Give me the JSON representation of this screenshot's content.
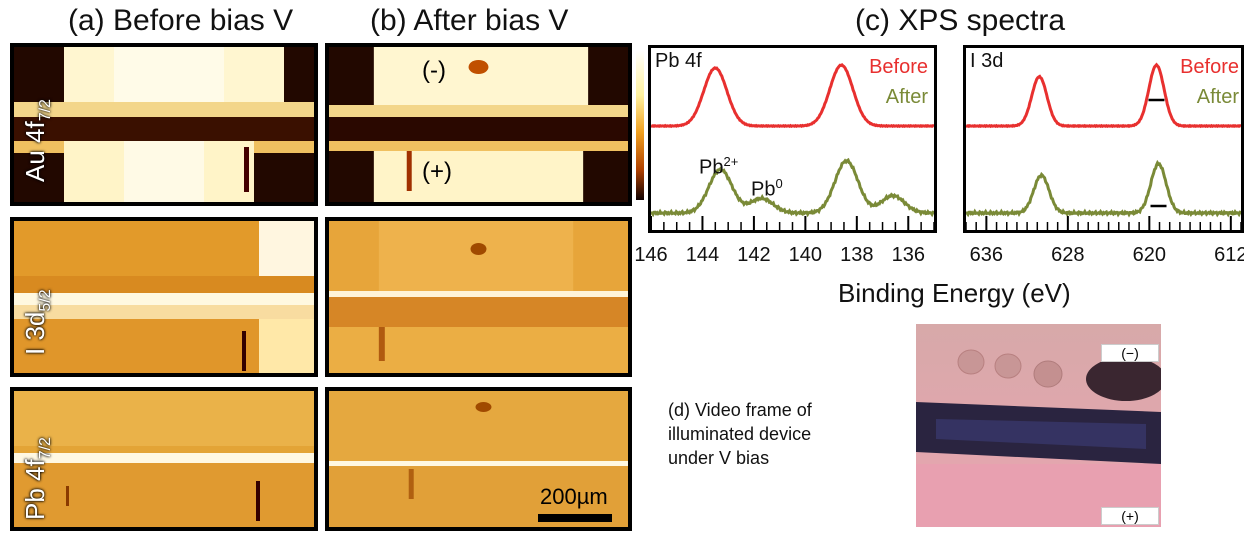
{
  "titles": {
    "a": "(a) Before bias V",
    "b": "(b) After bias V",
    "c": "(c) XPS spectra"
  },
  "row_labels": {
    "au_main": "Au 4f",
    "au_sub": "7/2",
    "i_main": "I 3d",
    "i_sub": "5/2",
    "pb_main": "Pb 4f",
    "pb_sub": "7/2"
  },
  "markers": {
    "neg": "(-)",
    "pos": "(+)"
  },
  "scale_bar": "200µm",
  "colors": {
    "before": "#e8302f",
    "after": "#7a8a37"
  },
  "chart_data": [
    {
      "type": "line",
      "panel": "Pb 4f",
      "xlabel": "Binding Energy (eV)",
      "x_reversed": true,
      "xlim": [
        146,
        135
      ],
      "ticks": [
        146,
        144,
        142,
        140,
        138,
        136
      ],
      "legend": [
        "Before",
        "After"
      ],
      "annotations": [
        {
          "text_main": "Pb",
          "text_sup": "2+",
          "x": 143.2
        },
        {
          "text_main": "Pb",
          "text_sup": "0",
          "x": 141.7
        }
      ],
      "series": [
        {
          "name": "Before",
          "peaks": [
            {
              "x": 143.5,
              "h": 1.0
            },
            {
              "x": 138.6,
              "h": 1.05
            }
          ]
        },
        {
          "name": "After",
          "peaks": [
            {
              "x": 143.3,
              "h": 0.75
            },
            {
              "x": 141.7,
              "h": 0.25
            },
            {
              "x": 138.4,
              "h": 0.9
            },
            {
              "x": 136.6,
              "h": 0.3
            }
          ]
        }
      ]
    },
    {
      "type": "line",
      "panel": "I 3d",
      "xlabel": "Binding Energy (eV)",
      "x_reversed": true,
      "xlim": [
        638,
        611
      ],
      "ticks": [
        636,
        628,
        620,
        612
      ],
      "legend": [
        "Before",
        "After"
      ],
      "series": [
        {
          "name": "Before",
          "peaks": [
            {
              "x": 630.8,
              "h": 0.85
            },
            {
              "x": 619.3,
              "h": 1.05
            }
          ]
        },
        {
          "name": "After",
          "peaks": [
            {
              "x": 630.6,
              "h": 0.65
            },
            {
              "x": 619.1,
              "h": 0.85
            }
          ]
        }
      ]
    }
  ],
  "caption": {
    "line1": "(d) Video frame of",
    "line2": "illuminated device",
    "line3": "under V bias"
  },
  "photo_tags": {
    "neg": "(−)",
    "pos": "(+)"
  }
}
